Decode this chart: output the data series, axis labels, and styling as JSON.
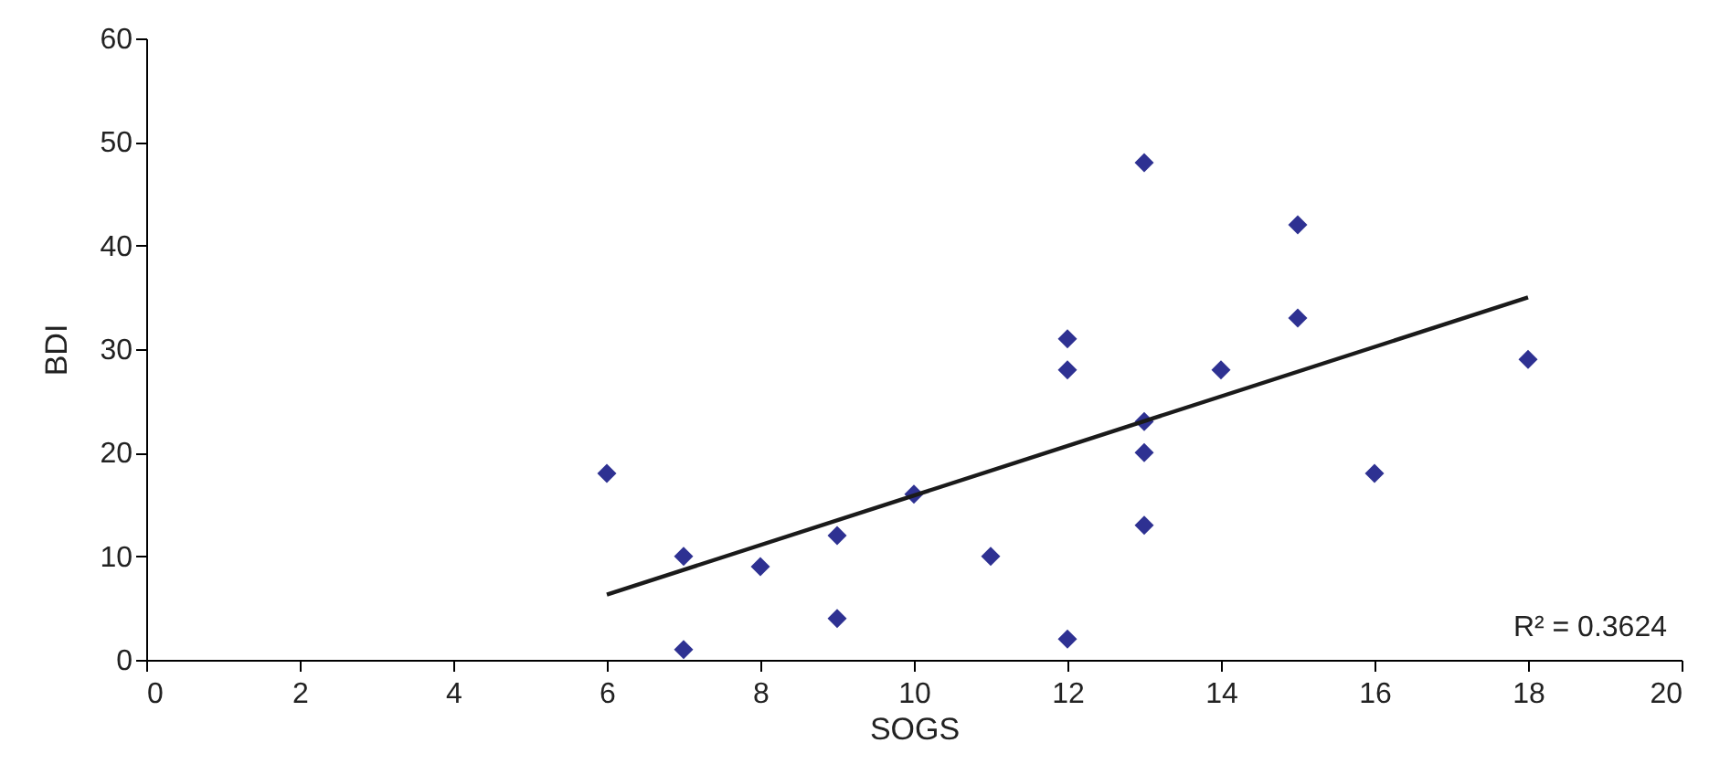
{
  "chart_data": {
    "type": "scatter",
    "xlabel": "SOGS",
    "ylabel": "BDI",
    "marker": "diamond",
    "xlim": [
      0,
      20
    ],
    "xticks": [
      0,
      2,
      4,
      6,
      8,
      10,
      12,
      14,
      16,
      18,
      20
    ],
    "ylim": [
      0,
      60
    ],
    "yticks": [
      0,
      10,
      20,
      30,
      40,
      50,
      60
    ],
    "annotations": [
      "R² = 0.3624"
    ],
    "series": [
      {
        "color": "#2e3192",
        "x": [
          6,
          7,
          7,
          8,
          9,
          9,
          10,
          11,
          12,
          12,
          12,
          13,
          13,
          13,
          13,
          14,
          15,
          15,
          16,
          18
        ],
        "values": [
          18,
          10,
          1,
          9,
          12,
          4,
          16,
          10,
          31,
          28,
          2,
          48,
          23,
          20,
          13,
          28,
          42,
          33,
          18,
          29
        ]
      },
      {
        "type": "line",
        "color": "#1a1a1a",
        "line_style": "solid",
        "marker": "none",
        "x": [
          6,
          18
        ],
        "values": [
          6.3,
          35
        ]
      }
    ]
  }
}
